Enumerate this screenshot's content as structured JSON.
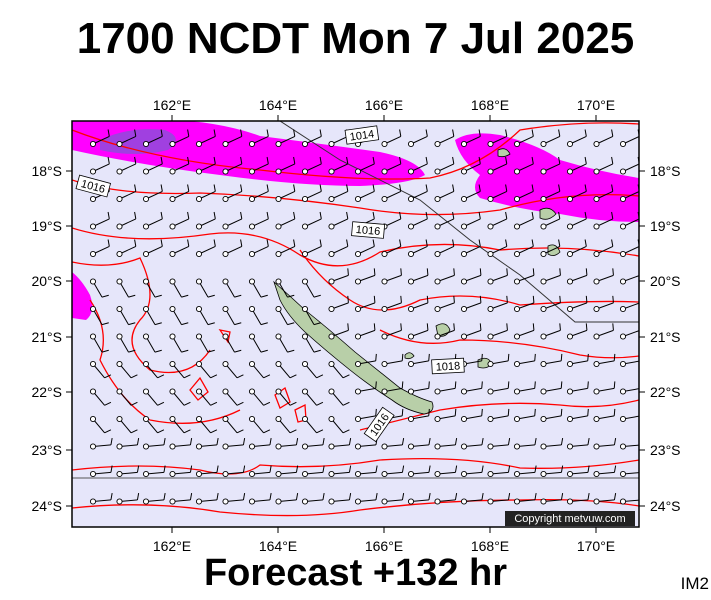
{
  "title": "1700 NCDT Mon 7 Jul 2025",
  "footer": "Forecast +132 hr",
  "code": "IM2",
  "copyright": "Copyright metvuw.com",
  "lon_labels": [
    "162°E",
    "164°E",
    "166°E",
    "168°E",
    "170°E"
  ],
  "lat_labels": [
    "18°S",
    "19°S",
    "20°S",
    "21°S",
    "22°S",
    "23°S",
    "24°S"
  ],
  "isobar_labels": [
    "1014",
    "1016",
    "1016",
    "1018",
    "1016"
  ],
  "colors": {
    "ocean": "#e6e6fa",
    "isobar": "#ff0000",
    "wind_strong": "#ff00ff",
    "wind_core": "#a040e0",
    "land": "#b8cfa8"
  }
}
